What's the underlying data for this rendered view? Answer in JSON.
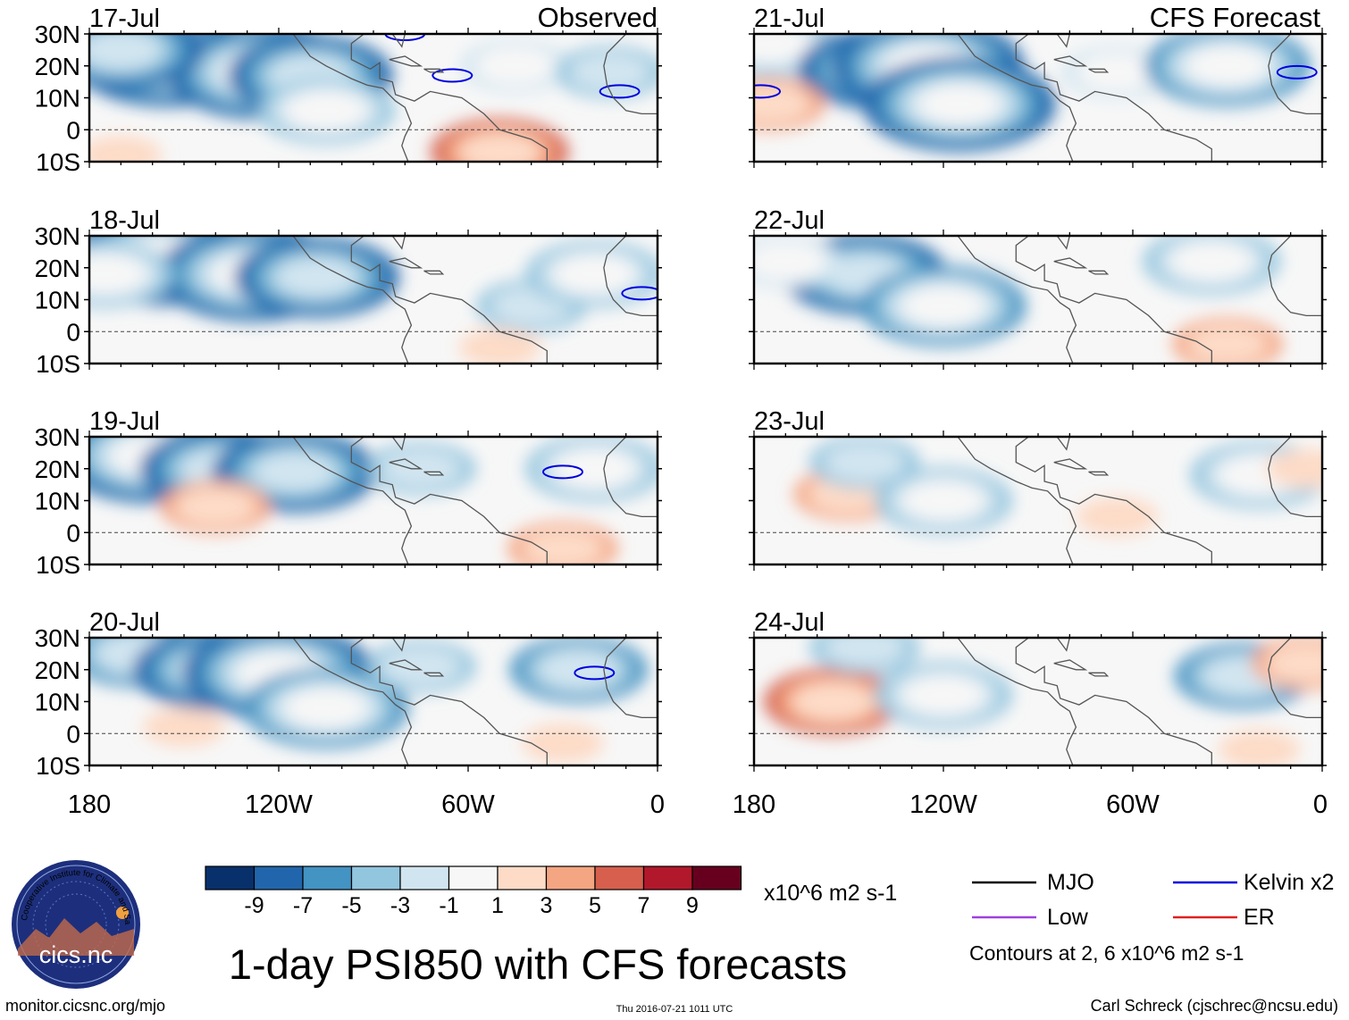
{
  "figure": {
    "title": "1-day PSI850 with CFS forecasts",
    "source_url": "monitor.cicsnc.org/mjo",
    "timestamp": "Thu 2016-07-21 1011 UTC",
    "author": "Carl Schreck (cjschrec@ncsu.edu)",
    "logo_text": "cics.nc",
    "logo_ring_text": "Cooperative Institute for Climate and Satellites"
  },
  "columns": [
    {
      "label": "Observed"
    },
    {
      "label": "CFS Forecast"
    }
  ],
  "axes": {
    "lat_ticks": [
      "30N",
      "20N",
      "10N",
      "0",
      "10S"
    ],
    "lon_ticks": [
      "180",
      "120W",
      "60W",
      "0"
    ]
  },
  "chart_data": {
    "type": "heatmap",
    "variable": "PSI850 streamfunction anomaly",
    "units": "x10^6 m2 s-1",
    "lat_range": [
      -10,
      30
    ],
    "lon_range": [
      -180,
      0
    ],
    "panels": [
      {
        "date": "17-Jul",
        "kind": "Observed",
        "features": [
          {
            "lon": -155,
            "lat": 22,
            "value": -9
          },
          {
            "lon": -125,
            "lat": 18,
            "value": -9
          },
          {
            "lon": -170,
            "lat": 25,
            "value": -8
          },
          {
            "lon": -110,
            "lat": 17,
            "value": -8
          },
          {
            "lon": -105,
            "lat": 6,
            "value": -5
          },
          {
            "lon": -45,
            "lat": 20,
            "value": -3
          },
          {
            "lon": -50,
            "lat": -7,
            "value": 6
          },
          {
            "lon": -170,
            "lat": -8,
            "value": 2
          },
          {
            "lon": -15,
            "lat": 18,
            "value": -4
          }
        ]
      },
      {
        "date": "18-Jul",
        "kind": "Observed",
        "features": [
          {
            "lon": -158,
            "lat": 23,
            "value": -9
          },
          {
            "lon": -128,
            "lat": 18,
            "value": -9
          },
          {
            "lon": -108,
            "lat": 17,
            "value": -8
          },
          {
            "lon": -40,
            "lat": 8,
            "value": -4
          },
          {
            "lon": -20,
            "lat": 18,
            "value": -5
          },
          {
            "lon": -50,
            "lat": -5,
            "value": 2
          },
          {
            "lon": -175,
            "lat": 18,
            "value": -5
          }
        ]
      },
      {
        "date": "19-Jul",
        "kind": "Observed",
        "features": [
          {
            "lon": -160,
            "lat": 24,
            "value": -9
          },
          {
            "lon": -138,
            "lat": 20,
            "value": -8
          },
          {
            "lon": -115,
            "lat": 19,
            "value": -8
          },
          {
            "lon": -75,
            "lat": 20,
            "value": -4
          },
          {
            "lon": -20,
            "lat": 20,
            "value": -5
          },
          {
            "lon": -140,
            "lat": 8,
            "value": 3
          },
          {
            "lon": -30,
            "lat": -5,
            "value": 4
          }
        ]
      },
      {
        "date": "20-Jul",
        "kind": "Observed",
        "features": [
          {
            "lon": -165,
            "lat": 25,
            "value": -6
          },
          {
            "lon": -140,
            "lat": 20,
            "value": -8
          },
          {
            "lon": -120,
            "lat": 19,
            "value": -9
          },
          {
            "lon": -105,
            "lat": 8,
            "value": -7
          },
          {
            "lon": -75,
            "lat": 21,
            "value": -4
          },
          {
            "lon": -25,
            "lat": 20,
            "value": -6
          },
          {
            "lon": -150,
            "lat": 2,
            "value": 2
          },
          {
            "lon": -30,
            "lat": -3,
            "value": 2
          }
        ]
      },
      {
        "date": "21-Jul",
        "kind": "CFS Forecast",
        "features": [
          {
            "lon": -175,
            "lat": 27,
            "value": -5
          },
          {
            "lon": -140,
            "lat": 19,
            "value": -8
          },
          {
            "lon": -125,
            "lat": 20,
            "value": -9
          },
          {
            "lon": -115,
            "lat": 8,
            "value": -9
          },
          {
            "lon": -65,
            "lat": 18,
            "value": -3
          },
          {
            "lon": -30,
            "lat": 20,
            "value": -7
          },
          {
            "lon": -175,
            "lat": 8,
            "value": 3
          }
        ]
      },
      {
        "date": "22-Jul",
        "kind": "CFS Forecast",
        "features": [
          {
            "lon": -145,
            "lat": 18,
            "value": -8
          },
          {
            "lon": -120,
            "lat": 8,
            "value": -7
          },
          {
            "lon": -35,
            "lat": 22,
            "value": -5
          },
          {
            "lon": -170,
            "lat": 22,
            "value": -3
          },
          {
            "lon": -30,
            "lat": -4,
            "value": 3
          }
        ]
      },
      {
        "date": "23-Jul",
        "kind": "CFS Forecast",
        "features": [
          {
            "lon": -150,
            "lat": 12,
            "value": 3
          },
          {
            "lon": -120,
            "lat": 10,
            "value": -5
          },
          {
            "lon": -145,
            "lat": 22,
            "value": -4
          },
          {
            "lon": -20,
            "lat": 18,
            "value": -5
          },
          {
            "lon": -65,
            "lat": 5,
            "value": 2
          },
          {
            "lon": -5,
            "lat": 20,
            "value": 2
          }
        ]
      },
      {
        "date": "24-Jul",
        "kind": "CFS Forecast",
        "features": [
          {
            "lon": -155,
            "lat": 10,
            "value": 5
          },
          {
            "lon": -120,
            "lat": 12,
            "value": -5
          },
          {
            "lon": -145,
            "lat": 27,
            "value": -4
          },
          {
            "lon": -25,
            "lat": 18,
            "value": -6
          },
          {
            "lon": -5,
            "lat": 22,
            "value": 3
          },
          {
            "lon": -20,
            "lat": -5,
            "value": 2
          }
        ]
      }
    ],
    "kelvin_contours": [
      {
        "panel": 0,
        "lon": -65,
        "lat": 17
      },
      {
        "panel": 0,
        "lon": -80,
        "lat": 30
      },
      {
        "panel": 0,
        "lon": -12,
        "lat": 12
      },
      {
        "panel": 2,
        "lon": -30,
        "lat": 19
      },
      {
        "panel": 3,
        "lon": -20,
        "lat": 19
      },
      {
        "panel": 4,
        "lon": -8,
        "lat": 18
      },
      {
        "panel": 4,
        "lon": -178,
        "lat": 12
      },
      {
        "panel": 1,
        "lon": -5,
        "lat": 12
      }
    ]
  },
  "colorbar": {
    "colors": [
      "#08306b",
      "#2166ac",
      "#4393c3",
      "#92c5de",
      "#d1e5f0",
      "#f7f7f7",
      "#fddbc7",
      "#f4a582",
      "#d6604d",
      "#b2182b",
      "#67001f"
    ],
    "labels": [
      "-9",
      "-7",
      "-5",
      "-3",
      "-1",
      "1",
      "3",
      "5",
      "7",
      "9"
    ],
    "units": "x10^6 m2 s-1"
  },
  "legend": {
    "items": [
      {
        "label": "MJO",
        "color": "#000000"
      },
      {
        "label": "Kelvin x2",
        "color": "#0000e0"
      },
      {
        "label": "Low",
        "color": "#a040e0"
      },
      {
        "label": "ER",
        "color": "#e02020"
      }
    ],
    "note": "Contours at 2, 6 x10^6 m2 s-1"
  }
}
